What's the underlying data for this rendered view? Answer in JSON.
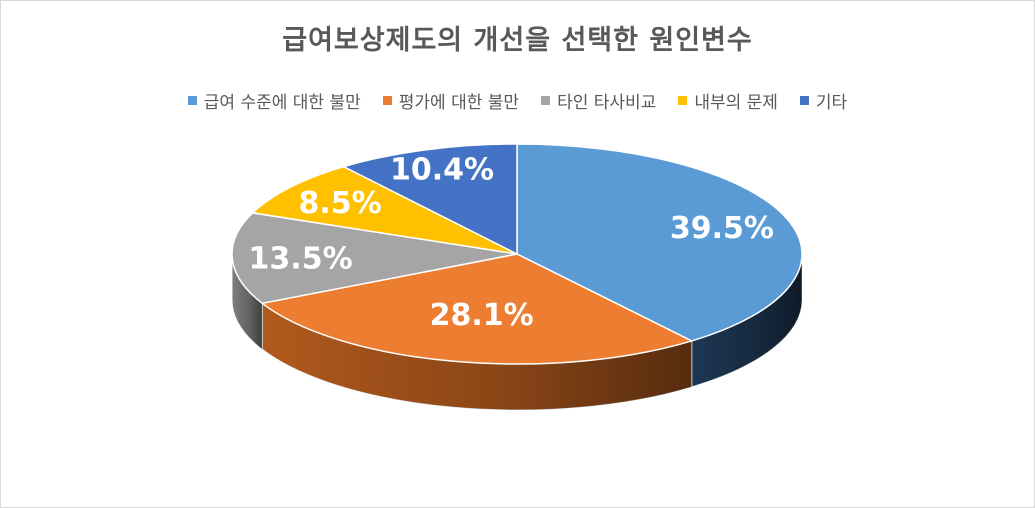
{
  "chart_data": {
    "type": "pie",
    "title": "급여보상제도의 개선을 선택한 원인변수",
    "categories": [
      "급여 수준에 대한 불만",
      "평가에 대한 불만",
      "타인 타사비교",
      "내부의 문제",
      "기타"
    ],
    "values": [
      39.5,
      28.1,
      13.5,
      8.5,
      10.4
    ],
    "labels": [
      "39.5%",
      "28.1%",
      "13.5%",
      "8.5%",
      "10.4%"
    ],
    "colors": [
      "#5B9BD5",
      "#ED7D31",
      "#A5A5A5",
      "#FFC000",
      "#4472C4"
    ],
    "legend_position": "top",
    "style": "3d"
  }
}
